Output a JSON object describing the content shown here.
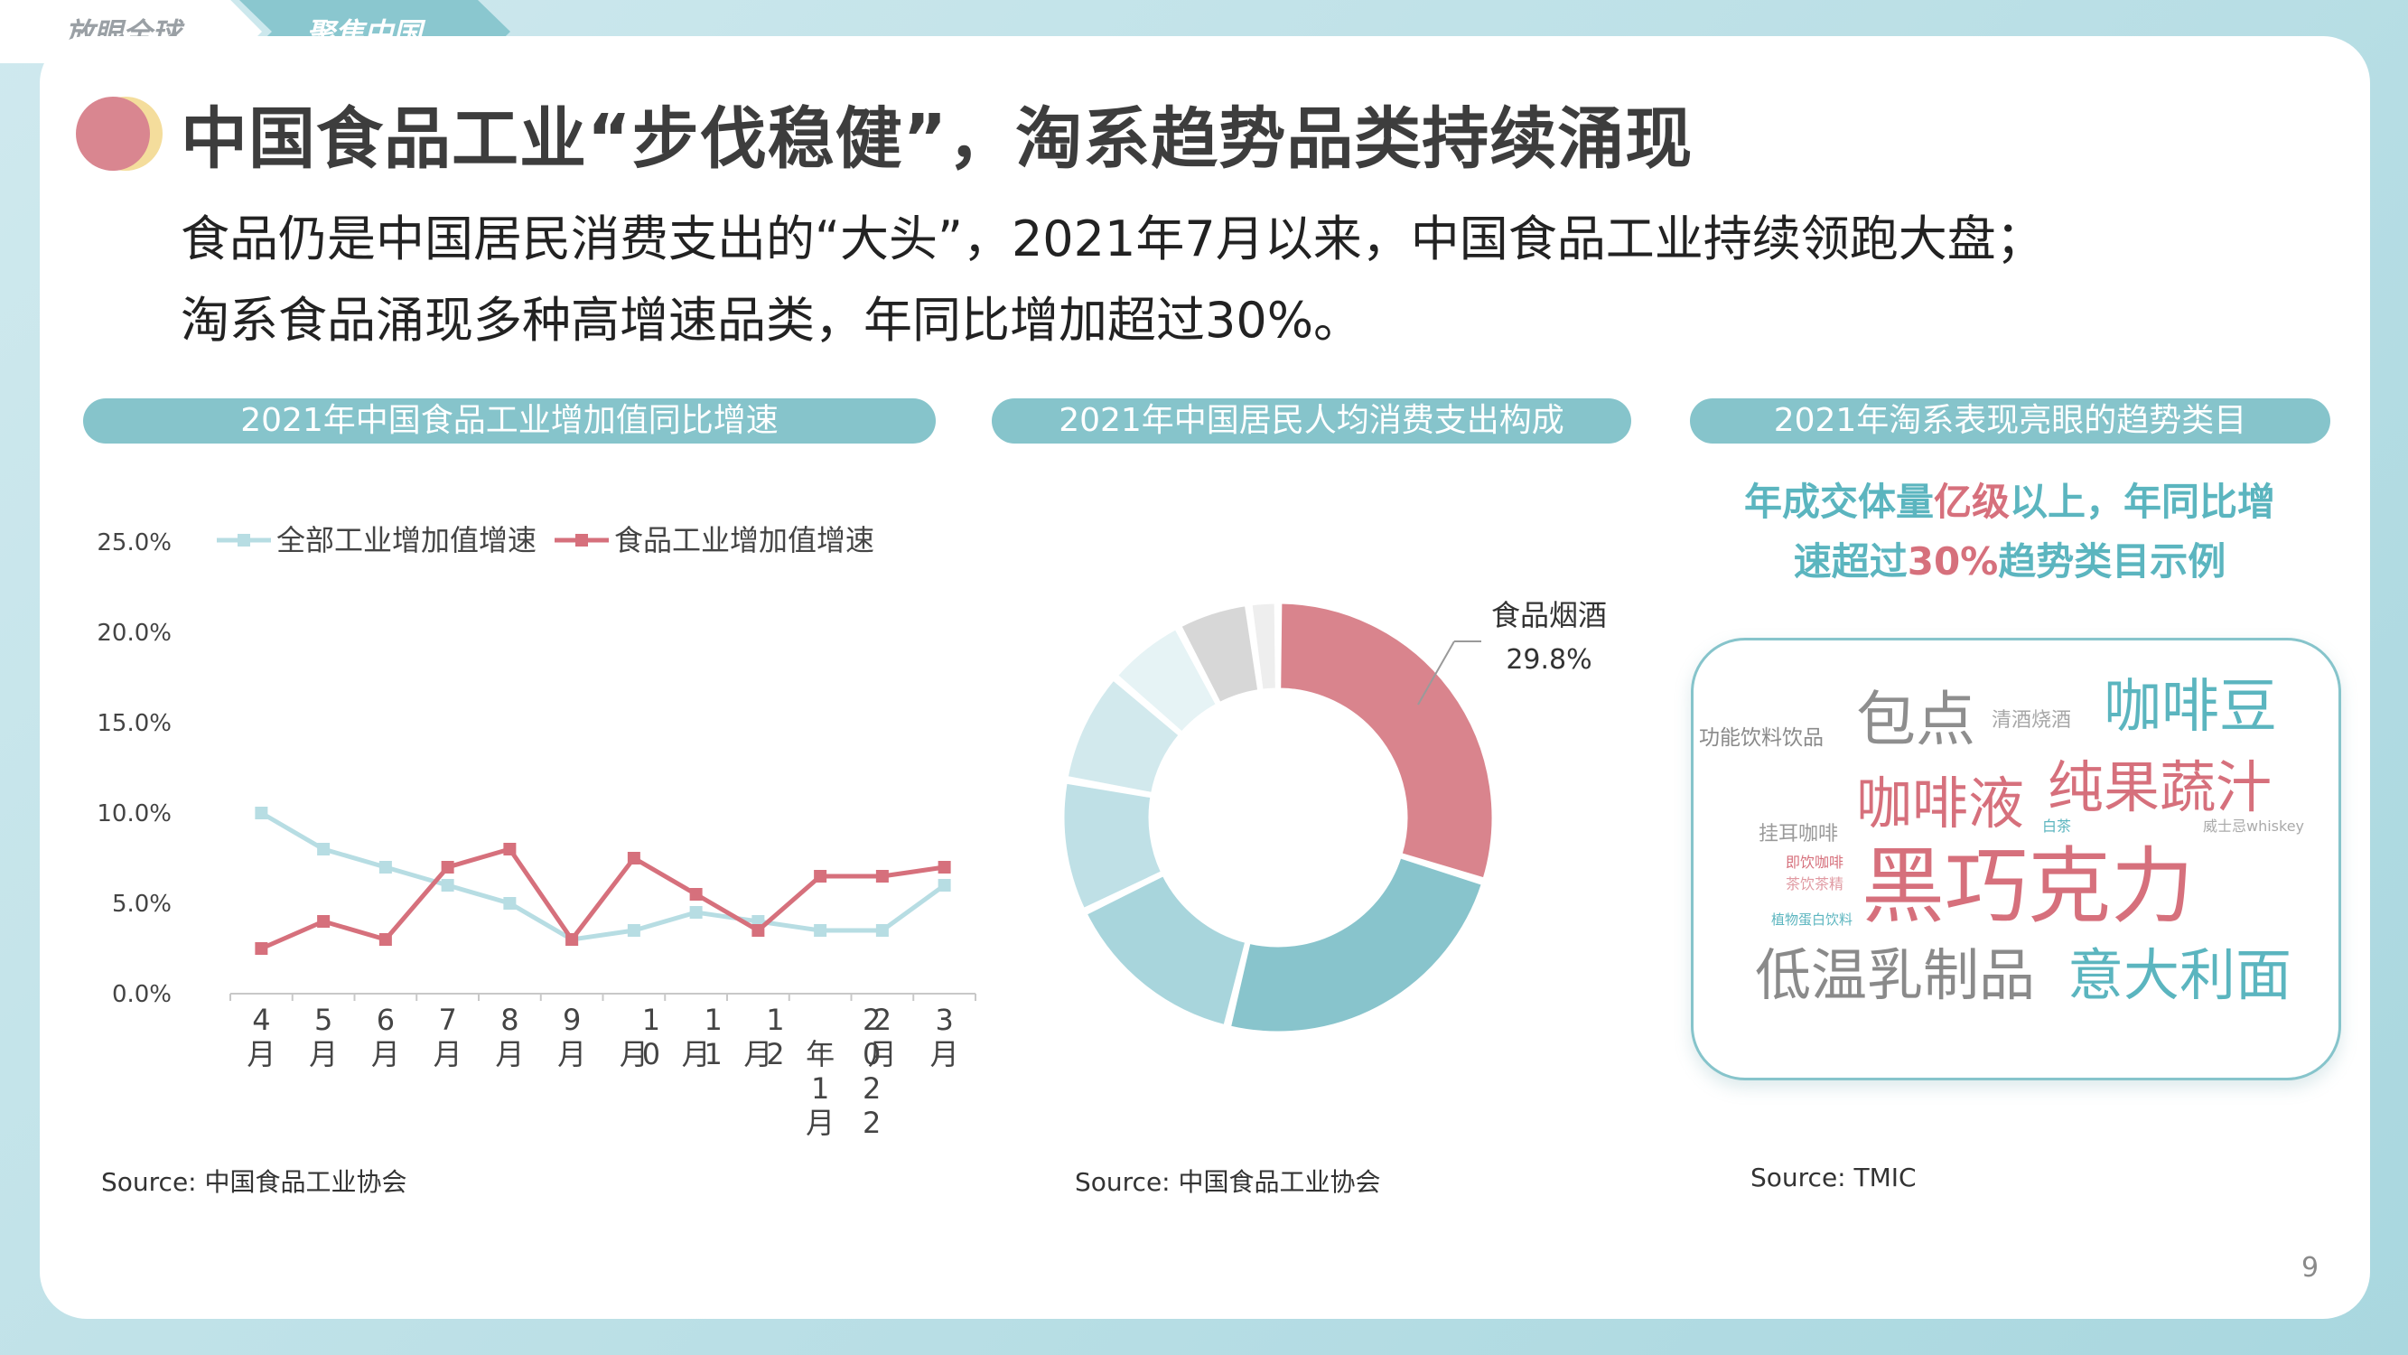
{
  "tabs": [
    {
      "label": "放眼全球"
    },
    {
      "label": "聚焦中国"
    }
  ],
  "title": "中国食品工业“步伐稳健”，淘系趋势品类持续涌现",
  "subtitle_lines": [
    "食品仍是中国居民消费支出的“大头”，2021年7月以来，中国食品工业持续领跑大盘；",
    "淘系食品涌现多种高增速品类，年同比增加超过30%。"
  ],
  "panels": [
    {
      "header": "2021年中国食品工业增加值同比增速",
      "source": "Source: 中国食品工业协会"
    },
    {
      "header": "2021年中国居民人均消费支出构成",
      "source": "Source: 中国食品工业协会"
    },
    {
      "header": "2021年淘系表现亮眼的趋势类目",
      "source": "Source: TMIC"
    }
  ],
  "chart_data": [
    {
      "type": "line",
      "categories": [
        "4月",
        "5月",
        "6月",
        "7月",
        "8月",
        "9月",
        "10月",
        "11月",
        "12月",
        "2022年1月",
        "2月",
        "3月"
      ],
      "series": [
        {
          "name": "全部工业增加值增速",
          "color": "#b7dde3",
          "values": [
            10.0,
            8.0,
            7.0,
            6.0,
            5.0,
            3.0,
            3.5,
            4.5,
            4.0,
            3.5,
            3.5,
            6.0
          ]
        },
        {
          "name": "食品工业增加值增速",
          "color": "#d6707c",
          "values": [
            2.5,
            4.0,
            3.0,
            7.0,
            8.0,
            3.0,
            7.5,
            5.5,
            3.5,
            6.5,
            6.5,
            7.0
          ]
        }
      ],
      "yticks": [
        "25.0%",
        "20.0%",
        "15.0%",
        "10.0%",
        "5.0%",
        "0.0%"
      ],
      "ylim": [
        0,
        25
      ],
      "legend": "top-left"
    },
    {
      "type": "pie",
      "style": "donut",
      "slices": [
        {
          "label": "食品烟酒",
          "value": 29.8,
          "color": "#d9848d"
        },
        {
          "value": 24.0,
          "color": "#88c4cc"
        },
        {
          "value": 14.0,
          "color": "#a8d5dc"
        },
        {
          "value": 10.0,
          "color": "#bfe0e6"
        },
        {
          "value": 8.5,
          "color": "#d2e9ed"
        },
        {
          "value": 6.0,
          "color": "#e6f3f5"
        },
        {
          "value": 5.5,
          "color": "#d7d7d7"
        },
        {
          "value": 2.2,
          "color": "#eeeeee"
        }
      ],
      "callout": {
        "label": "食品烟酒",
        "value": "29.8%"
      }
    }
  ],
  "trend": {
    "heading_line1_parts": [
      "年成交体量",
      "亿级",
      "以上，年同比增"
    ],
    "heading_line2_parts": [
      "速超过",
      "30%",
      "趋势类目示例"
    ],
    "words": [
      {
        "text": "包点",
        "color": "#8e8e8e"
      },
      {
        "text": "清酒烧酒",
        "color": "#a7a7a7"
      },
      {
        "text": "咖啡豆",
        "color": "#5bb5bf"
      },
      {
        "text": "功能饮料饮品",
        "color": "#8a8a8a"
      },
      {
        "text": "咖啡液",
        "color": "#d6707c"
      },
      {
        "text": "纯果蔬汁",
        "color": "#d6707c"
      },
      {
        "text": "挂耳咖啡",
        "color": "#9a9a9a"
      },
      {
        "text": "白茶",
        "color": "#5bb5bf"
      },
      {
        "text": "威士忌whiskey",
        "color": "#aaaaaa"
      },
      {
        "text": "即饮咖啡",
        "color": "#d6707c"
      },
      {
        "text": "茶饮茶精",
        "color": "#e09aa2"
      },
      {
        "text": "黑巧克力",
        "color": "#d6707c"
      },
      {
        "text": "植物蛋白饮料",
        "color": "#5bb5bf"
      },
      {
        "text": "低温乳制品",
        "color": "#8a8a8a"
      },
      {
        "text": "意大利面",
        "color": "#5bb5bf"
      }
    ]
  },
  "page_number": "9"
}
